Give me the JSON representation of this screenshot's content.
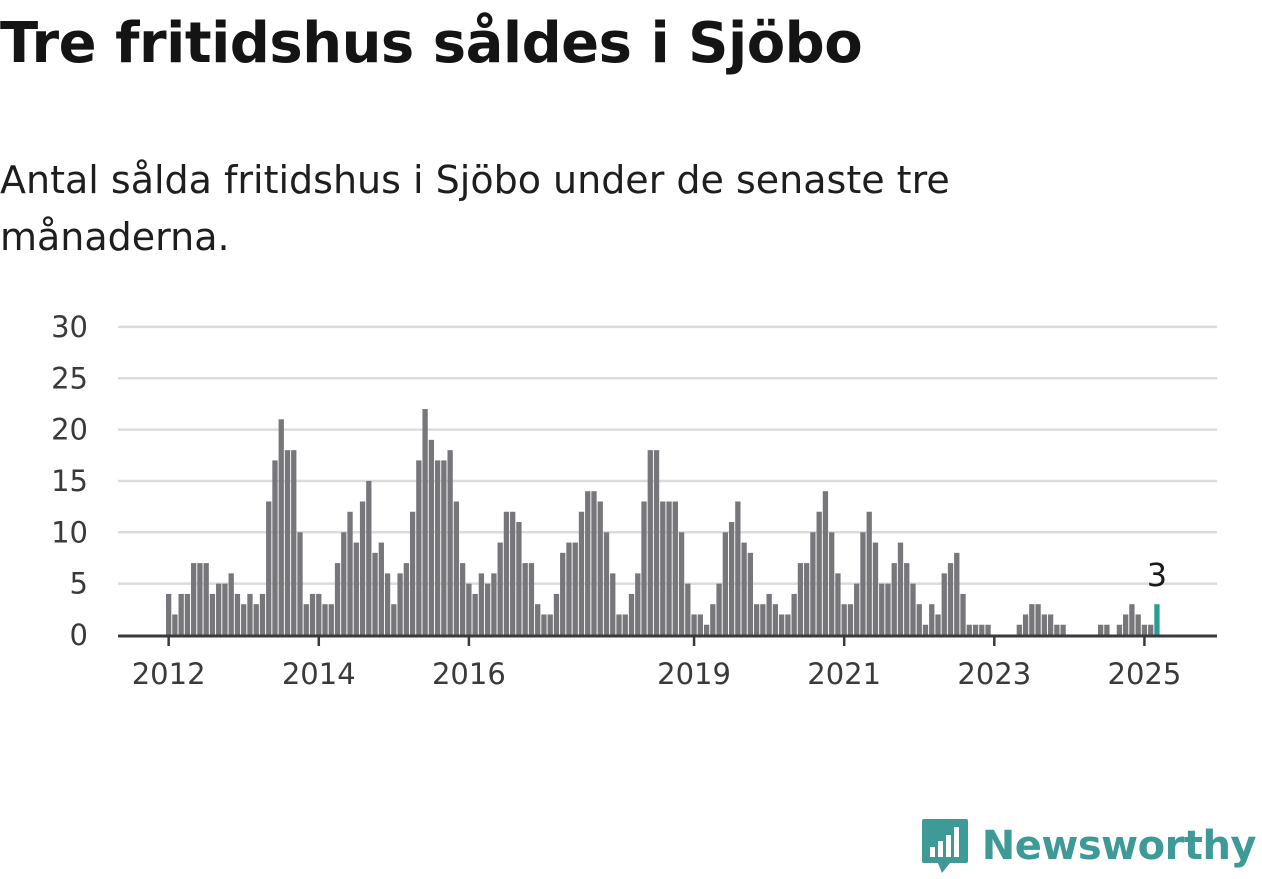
{
  "title": "Tre fritidshus såldes i Sjöbo",
  "subtitle": "Antal sålda fritidshus i Sjöbo under de senaste tre månaderna.",
  "brand": {
    "name": "Newsworthy",
    "color": "#3e9a96"
  },
  "chart_data": {
    "type": "bar",
    "title": "",
    "xlabel": "",
    "ylabel": "",
    "ylim": [
      0,
      30
    ],
    "yticks": [
      0,
      5,
      10,
      15,
      20,
      25,
      30
    ],
    "grid": true,
    "legend": "none",
    "x_start": "2012-01",
    "x_end": "2025-03",
    "xtick_labels": [
      {
        "label": "2012",
        "date": "2012-01"
      },
      {
        "label": "2014",
        "date": "2014-01"
      },
      {
        "label": "2016",
        "date": "2016-01"
      },
      {
        "label": "2019",
        "date": "2019-01"
      },
      {
        "label": "2021",
        "date": "2021-01"
      },
      {
        "label": "2023",
        "date": "2023-01"
      },
      {
        "label": "2025",
        "date": "2025-01"
      }
    ],
    "bar_color": "#77767a",
    "highlight_color": "#2a9d94",
    "highlight_label": "3",
    "values": [
      4,
      2,
      4,
      4,
      7,
      7,
      7,
      4,
      5,
      5,
      6,
      4,
      3,
      4,
      3,
      4,
      13,
      17,
      21,
      18,
      18,
      10,
      3,
      4,
      4,
      3,
      3,
      7,
      10,
      12,
      9,
      13,
      15,
      8,
      9,
      6,
      3,
      6,
      7,
      12,
      17,
      22,
      19,
      17,
      17,
      18,
      13,
      7,
      5,
      4,
      6,
      5,
      6,
      9,
      12,
      12,
      11,
      7,
      7,
      3,
      2,
      2,
      4,
      8,
      9,
      9,
      12,
      14,
      14,
      13,
      10,
      6,
      2,
      2,
      4,
      6,
      13,
      18,
      18,
      13,
      13,
      13,
      10,
      5,
      2,
      2,
      1,
      3,
      5,
      10,
      11,
      13,
      9,
      8,
      3,
      3,
      4,
      3,
      2,
      2,
      4,
      7,
      7,
      10,
      12,
      14,
      10,
      6,
      3,
      3,
      5,
      10,
      12,
      9,
      5,
      5,
      7,
      9,
      7,
      5,
      3,
      1,
      3,
      2,
      6,
      7,
      8,
      4,
      1,
      1,
      1,
      1,
      0,
      0,
      0,
      0,
      1,
      2,
      3,
      3,
      2,
      2,
      1,
      1,
      0,
      0,
      0,
      0,
      0,
      1,
      1,
      0,
      1,
      2,
      3,
      2,
      1,
      1,
      3
    ]
  }
}
